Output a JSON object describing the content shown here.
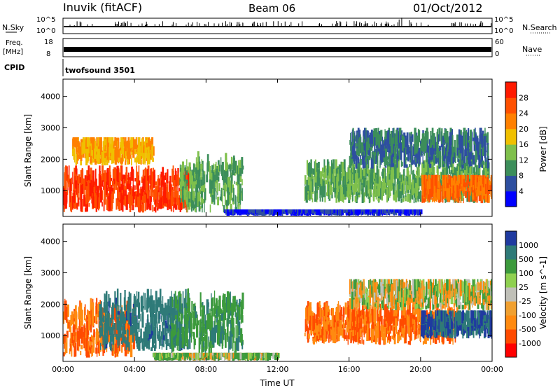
{
  "header": {
    "station": "Inuvik (fitACF)",
    "beam": "Beam 06",
    "date": "01/Oct/2012"
  },
  "strip_labels": {
    "nsky": "N.Sky",
    "nsky_tick_top": "10^5",
    "nsky_tick_bottom": "10^0",
    "nsearch": "N.Search",
    "freq": "Freq.",
    "freq_unit": "[MHz]",
    "freq_tick_top": "18",
    "freq_tick_bottom": "8",
    "nave": "Nave",
    "nave_tick_top": "60",
    "nave_tick_bottom": "0",
    "cpid": "CPID",
    "cpid_value": "twofsound 3501"
  },
  "colors": {
    "power_scale": [
      "#0000ff",
      "#2e4fa0",
      "#3c8e5a",
      "#7fc04c",
      "#f0c000",
      "#ff8000",
      "#ff5000",
      "#ff1a00"
    ],
    "velocity_scale": [
      "#ff0000",
      "#ff4a00",
      "#ff8a10",
      "#f0a030",
      "#c0c0b8",
      "#8fd050",
      "#3c9a3c",
      "#2e7a78",
      "#1f3aa0"
    ]
  },
  "chart_data": [
    {
      "type": "heatmap",
      "title": "Power",
      "xlabel": "",
      "ylabel": "Slant Range [km]",
      "x_ticks": [
        "00:00",
        "04:00",
        "08:00",
        "12:00",
        "16:00",
        "20:00",
        "00:00"
      ],
      "xlim": [
        "00:00",
        "24:00"
      ],
      "y_ticks": [
        1000,
        2000,
        3000,
        4000
      ],
      "ylim": [
        180,
        4550
      ],
      "colorbar": {
        "label": "Power [dB]",
        "ticks": [
          4,
          8,
          12,
          16,
          20,
          24,
          28
        ],
        "range": [
          0,
          32
        ]
      },
      "regions": [
        {
          "t0": 0.0,
          "t1": 7.0,
          "r0": 300,
          "r1": 1800,
          "value_db": 28
        },
        {
          "t0": 0.5,
          "t1": 5.0,
          "r0": 1800,
          "r1": 2700,
          "value_db": 20
        },
        {
          "t0": 6.5,
          "t1": 10.0,
          "r0": 300,
          "r1": 2300,
          "value_db": 12
        },
        {
          "t0": 13.5,
          "t1": 23.8,
          "r0": 600,
          "r1": 2000,
          "value_db": 12
        },
        {
          "t0": 16.0,
          "t1": 23.8,
          "r0": 1700,
          "r1": 3000,
          "value_db": 8
        },
        {
          "t0": 9.0,
          "t1": 20.0,
          "r0": 200,
          "r1": 400,
          "value_db": 4
        },
        {
          "t0": 20.0,
          "t1": 24.0,
          "r0": 600,
          "r1": 1500,
          "value_db": 24
        }
      ]
    },
    {
      "type": "heatmap",
      "title": "Velocity",
      "xlabel": "Time UT",
      "ylabel": "Slant Range [km]",
      "x_ticks": [
        "00:00",
        "04:00",
        "08:00",
        "12:00",
        "16:00",
        "20:00",
        "00:00"
      ],
      "xlim": [
        "00:00",
        "24:00"
      ],
      "y_ticks": [
        1000,
        2000,
        3000,
        4000
      ],
      "ylim": [
        180,
        4550
      ],
      "colorbar": {
        "label": "Velocity [m s^-1]",
        "ticks": [
          -1000,
          -500,
          -100,
          -25,
          25,
          100,
          500,
          1000
        ]
      },
      "regions": [
        {
          "t0": 0.0,
          "t1": 4.0,
          "r0": 300,
          "r1": 2300,
          "value_ms": -500
        },
        {
          "t0": 2.0,
          "t1": 7.0,
          "r0": 500,
          "r1": 2600,
          "value_ms": 800
        },
        {
          "t0": 6.0,
          "t1": 10.0,
          "r0": 400,
          "r1": 2600,
          "value_ms": 400
        },
        {
          "t0": 13.5,
          "t1": 22.0,
          "r0": 700,
          "r1": 2100,
          "value_ms": -500
        },
        {
          "t0": 20.0,
          "t1": 24.0,
          "r0": 900,
          "r1": 1800,
          "value_ms": 1000
        },
        {
          "t0": 16.0,
          "t1": 24.0,
          "r0": 1800,
          "r1": 2800,
          "value_ms": 0
        },
        {
          "t0": 5.0,
          "t1": 12.0,
          "r0": 200,
          "r1": 450,
          "value_ms": 100
        }
      ]
    }
  ]
}
